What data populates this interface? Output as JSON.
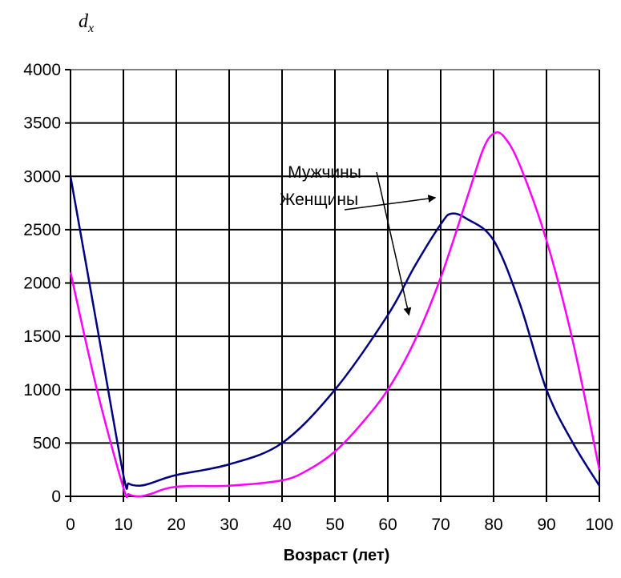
{
  "chart_data": {
    "type": "line",
    "ylabel": "d",
    "ylabel_subscript": "x",
    "xlabel": "Возраст (лет)",
    "xlim": [
      0,
      100
    ],
    "ylim": [
      0,
      4000
    ],
    "x_ticks": [
      0,
      10,
      20,
      30,
      40,
      50,
      60,
      70,
      80,
      90,
      100
    ],
    "y_ticks": [
      0,
      500,
      1000,
      1500,
      2000,
      2500,
      3000,
      3500,
      4000
    ],
    "grid": true,
    "annotations": [
      {
        "text": "Мужчины",
        "series": "Мужчины",
        "arrow_to": [
          64,
          1700
        ]
      },
      {
        "text": "Женщины",
        "series": "Женщины",
        "arrow_to": [
          69,
          2800
        ]
      }
    ],
    "series": [
      {
        "name": "Мужчины",
        "color": "#000080",
        "x": [
          0,
          5,
          10,
          11,
          13,
          15,
          20,
          30,
          40,
          50,
          60,
          65,
          70,
          72,
          75,
          80,
          85,
          90,
          95,
          100
        ],
        "y": [
          3000,
          1600,
          200,
          120,
          100,
          120,
          200,
          300,
          500,
          1000,
          1700,
          2150,
          2550,
          2650,
          2600,
          2400,
          1800,
          1000,
          500,
          100
        ]
      },
      {
        "name": "Женщины",
        "color": "#ff00ff",
        "x": [
          0,
          5,
          10,
          11,
          13,
          15,
          20,
          30,
          40,
          45,
          50,
          55,
          60,
          65,
          70,
          75,
          78,
          80,
          82,
          85,
          90,
          95,
          100
        ],
        "y": [
          2100,
          1000,
          80,
          20,
          0,
          20,
          90,
          100,
          150,
          250,
          420,
          680,
          1000,
          1450,
          2050,
          2800,
          3250,
          3400,
          3370,
          3100,
          2400,
          1450,
          250
        ]
      }
    ]
  }
}
